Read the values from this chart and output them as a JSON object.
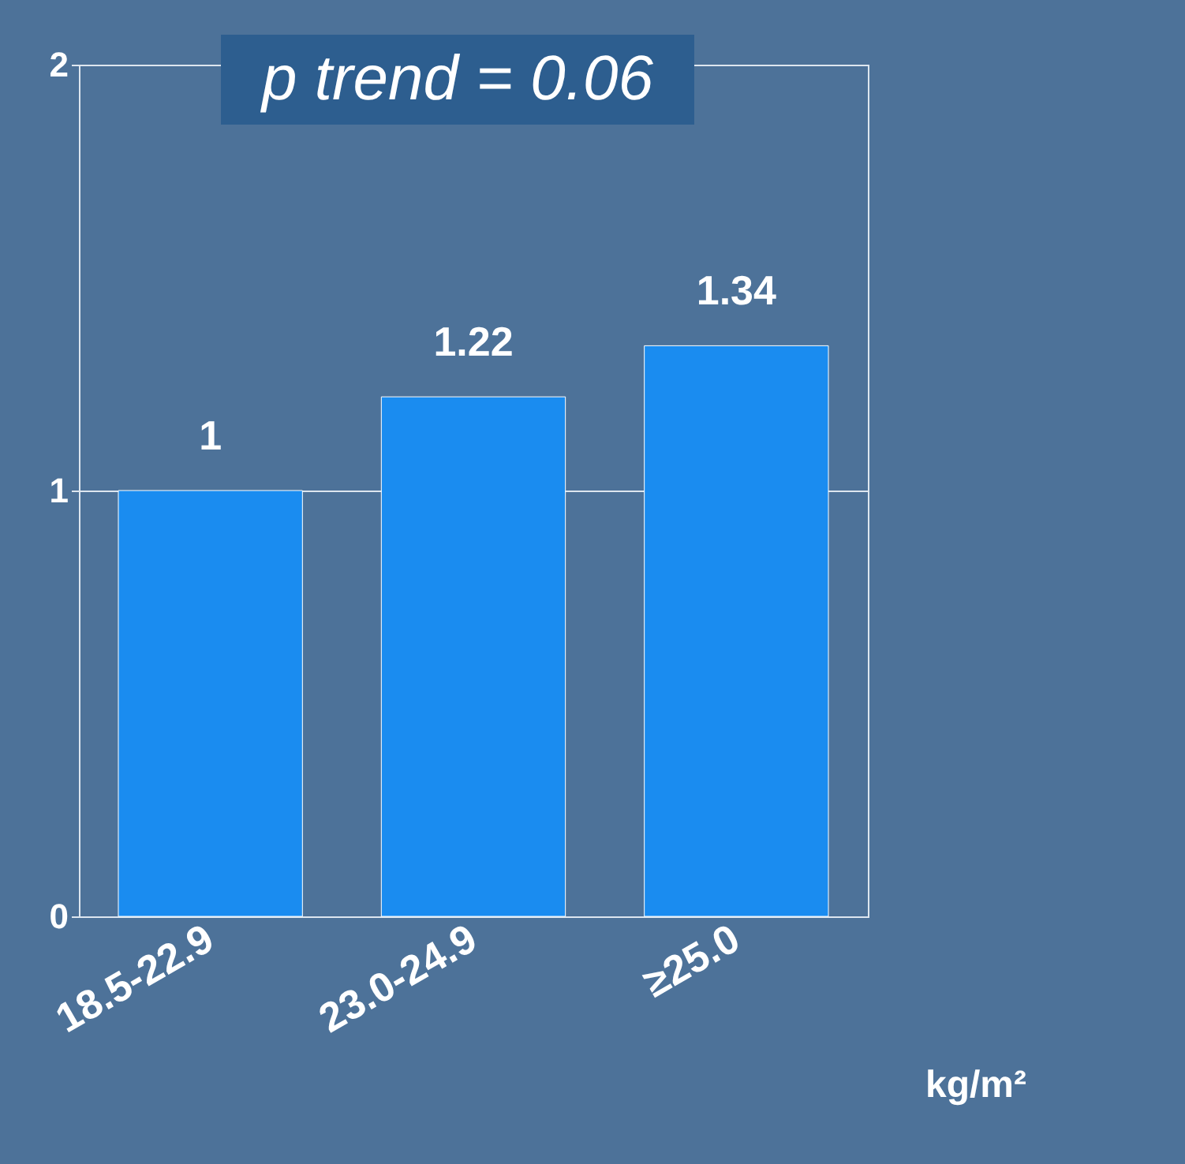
{
  "chart_data": {
    "type": "bar",
    "categories": [
      "18.5-22.9",
      "23.0-24.9",
      "≥25.0"
    ],
    "values": [
      1,
      1.22,
      1.34
    ],
    "color": "#1a8cf0",
    "xlabel": "kg/m²",
    "ylim": [
      0,
      2
    ],
    "yticks": [
      0,
      1,
      2
    ],
    "grid": "y",
    "data_labels": true,
    "annotations": [
      "p trend = 0.06"
    ]
  }
}
